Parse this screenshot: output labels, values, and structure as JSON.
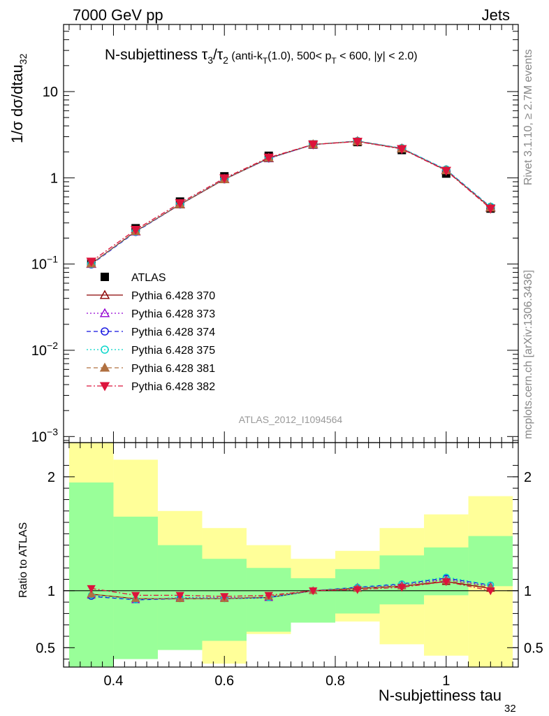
{
  "header": {
    "left": "7000 GeV pp",
    "right": "Jets"
  },
  "side_labels": {
    "rivet": "Rivet 3.1.10, ≥ 2.7M events",
    "mcplots": "mcplots.cern.ch [arXiv:1306.3436]"
  },
  "analysis_label": "ATLAS_2012_I1094564",
  "title": {
    "main": "N-subjettiness τ",
    "sub3": "3",
    "slash": "/τ",
    "sub2": "2",
    "p1": " (anti-k",
    "subT1": "T",
    "p2": "(1.0), 500< p",
    "subT2": "T",
    "p3": " < 600, |y| < 2.0)"
  },
  "ylabel": {
    "text": "1/σ dσ/dtau",
    "sub": "32"
  },
  "xlabel": {
    "text": "N-subjettiness tau",
    "sub": "32"
  },
  "ratio_ylabel": "Ratio to ATLAS",
  "chart_data": {
    "type": "scatter",
    "x": [
      0.36,
      0.44,
      0.52,
      0.6,
      0.68,
      0.76,
      0.84,
      0.92,
      1.0,
      1.08
    ],
    "bin_edges": [
      0.32,
      0.4,
      0.48,
      0.56,
      0.64,
      0.72,
      0.8,
      0.88,
      0.96,
      1.04,
      1.12
    ],
    "xlim": [
      0.31,
      1.13
    ],
    "main": {
      "ylim": [
        0.00085,
        60
      ],
      "yscale": "log",
      "yticks": [
        {
          "v": 0.001,
          "m": "10",
          "e": "−3"
        },
        {
          "v": 0.01,
          "m": "10",
          "e": "−2"
        },
        {
          "v": 0.1,
          "m": "10",
          "e": "−1"
        },
        {
          "v": 1,
          "m": "1",
          "e": ""
        },
        {
          "v": 10,
          "m": "10",
          "e": ""
        }
      ]
    },
    "ratio": {
      "ylim": [
        0.33,
        2.3
      ],
      "yticks": [
        {
          "v": 0.5,
          "label": "0.5"
        },
        {
          "v": 1,
          "label": "1"
        },
        {
          "v": 2,
          "label": "2"
        }
      ],
      "band_inner": [
        [
          0.32,
          1.95
        ],
        [
          0.4,
          1.65
        ],
        [
          0.48,
          1.4
        ],
        [
          0.56,
          1.28
        ],
        [
          0.64,
          1.2
        ],
        [
          0.72,
          1.11
        ],
        [
          0.8,
          1.19
        ],
        [
          0.88,
          1.31
        ],
        [
          0.96,
          1.38
        ],
        [
          1.04,
          1.48
        ]
      ],
      "band_outer": [
        [
          0.0,
          5.0
        ],
        [
          0.42,
          2.15
        ],
        [
          0.48,
          1.7
        ],
        [
          0.36,
          1.55
        ],
        [
          0.62,
          1.4
        ],
        [
          0.78,
          1.28
        ],
        [
          0.73,
          1.35
        ],
        [
          0.53,
          1.55
        ],
        [
          0.43,
          1.67
        ],
        [
          0.33,
          1.83
        ]
      ]
    },
    "xticks": [
      {
        "v": 0.4,
        "label": "0.4"
      },
      {
        "v": 0.6,
        "label": "0.6"
      },
      {
        "v": 0.8,
        "label": "0.8"
      },
      {
        "v": 1.0,
        "label": "1"
      }
    ],
    "data": {
      "name": "ATLAS",
      "values": [
        0.105,
        0.26,
        0.53,
        1.04,
        1.8,
        2.43,
        2.6,
        2.1,
        1.12,
        0.44
      ]
    },
    "series": [
      {
        "name": "Pythia 6.428 370",
        "color": "#8b0000",
        "dash": "",
        "marker": "tri-open",
        "values": [
          0.101,
          0.24,
          0.49,
          0.96,
          1.68,
          2.43,
          2.65,
          2.18,
          1.22,
          0.45
        ],
        "ratio": [
          0.97,
          0.93,
          0.93,
          0.93,
          0.94,
          1.0,
          1.02,
          1.04,
          1.08,
          1.02
        ]
      },
      {
        "name": "Pythia 6.428 373",
        "color": "#9400d3",
        "dash": "2,3",
        "marker": "tri-open",
        "values": [
          0.1,
          0.238,
          0.495,
          0.97,
          1.69,
          2.43,
          2.66,
          2.19,
          1.23,
          0.455
        ],
        "ratio": [
          0.96,
          0.92,
          0.94,
          0.94,
          0.94,
          1.0,
          1.03,
          1.05,
          1.1,
          1.04
        ]
      },
      {
        "name": "Pythia 6.428 374",
        "color": "#1010e0",
        "dash": "6,4",
        "marker": "circle-open",
        "values": [
          0.099,
          0.236,
          0.49,
          0.96,
          1.68,
          2.43,
          2.67,
          2.2,
          1.24,
          0.46
        ],
        "ratio": [
          0.95,
          0.92,
          0.93,
          0.93,
          0.94,
          1.0,
          1.03,
          1.06,
          1.11,
          1.05
        ]
      },
      {
        "name": "Pythia 6.428 375",
        "color": "#00d4c8",
        "dash": "2,3",
        "marker": "circle-open",
        "values": [
          0.1,
          0.238,
          0.495,
          0.965,
          1.69,
          2.44,
          2.67,
          2.21,
          1.25,
          0.462
        ],
        "ratio": [
          0.96,
          0.92,
          0.94,
          0.93,
          0.94,
          1.0,
          1.03,
          1.06,
          1.12,
          1.05
        ]
      },
      {
        "name": "Pythia 6.428 381",
        "color": "#b07040",
        "dash": "6,4",
        "marker": "tri-filled",
        "values": [
          0.101,
          0.24,
          0.492,
          0.96,
          1.7,
          2.44,
          2.65,
          2.18,
          1.22,
          0.452
        ],
        "ratio": [
          0.97,
          0.93,
          0.93,
          0.93,
          0.95,
          1.0,
          1.02,
          1.04,
          1.09,
          1.03
        ]
      },
      {
        "name": "Pythia 6.428 382",
        "color": "#dc143c",
        "dash": "7,3,2,3",
        "marker": "tri-down-filled",
        "values": [
          0.107,
          0.25,
          0.51,
          0.99,
          1.72,
          2.44,
          2.63,
          2.16,
          1.21,
          0.44
        ],
        "ratio": [
          1.02,
          0.96,
          0.96,
          0.95,
          0.96,
          1.0,
          1.01,
          1.03,
          1.08,
          1.0
        ]
      }
    ]
  }
}
